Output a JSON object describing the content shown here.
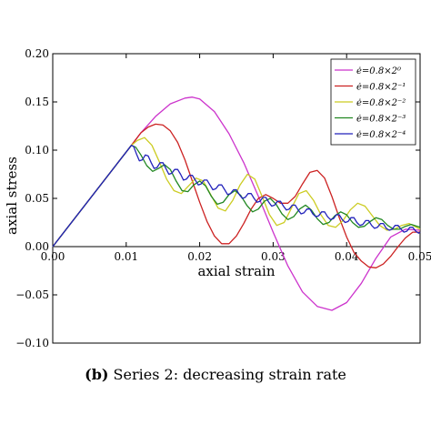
{
  "caption": {
    "label": "(b)",
    "text": "Series 2: decreasing strain rate"
  },
  "chart_data": {
    "type": "line",
    "xlabel": "axial strain",
    "ylabel": "axial stress",
    "xlim": [
      0.0,
      0.05
    ],
    "ylim": [
      -0.1,
      0.2
    ],
    "x_ticks": [
      "0.00",
      "0.01",
      "0.02",
      "0.03",
      "0.04",
      "0.05"
    ],
    "y_ticks": [
      "0.20",
      "0.15",
      "0.10",
      "0.05",
      "0.00",
      "−0.05",
      "−0.10"
    ],
    "x_tick_values": [
      0.0,
      0.01,
      0.02,
      0.03,
      0.04,
      0.05
    ],
    "y_tick_values": [
      0.2,
      0.15,
      0.1,
      0.05,
      0.0,
      -0.05,
      -0.1
    ],
    "grid": false,
    "legend_position": "top-right",
    "series": [
      {
        "name": "ė=0.8×2⁰",
        "color": "#cc33cc",
        "points": [
          [
            0.0,
            0.0
          ],
          [
            0.0107,
            0.105
          ],
          [
            0.012,
            0.118
          ],
          [
            0.014,
            0.135
          ],
          [
            0.016,
            0.148
          ],
          [
            0.018,
            0.154
          ],
          [
            0.019,
            0.155
          ],
          [
            0.02,
            0.153
          ],
          [
            0.022,
            0.14
          ],
          [
            0.024,
            0.117
          ],
          [
            0.026,
            0.087
          ],
          [
            0.028,
            0.052
          ],
          [
            0.03,
            0.015
          ],
          [
            0.032,
            -0.02
          ],
          [
            0.034,
            -0.047
          ],
          [
            0.036,
            -0.062
          ],
          [
            0.038,
            -0.066
          ],
          [
            0.04,
            -0.058
          ],
          [
            0.042,
            -0.038
          ],
          [
            0.044,
            -0.012
          ],
          [
            0.046,
            0.01
          ],
          [
            0.048,
            0.018
          ],
          [
            0.05,
            0.017
          ]
        ]
      },
      {
        "name": "ė=0.8×2⁻¹",
        "color": "#cc2222",
        "points": [
          [
            0.0,
            0.0
          ],
          [
            0.0107,
            0.105
          ],
          [
            0.012,
            0.118
          ],
          [
            0.013,
            0.124
          ],
          [
            0.014,
            0.127
          ],
          [
            0.015,
            0.126
          ],
          [
            0.016,
            0.12
          ],
          [
            0.017,
            0.108
          ],
          [
            0.018,
            0.09
          ],
          [
            0.019,
            0.068
          ],
          [
            0.02,
            0.046
          ],
          [
            0.021,
            0.026
          ],
          [
            0.022,
            0.011
          ],
          [
            0.023,
            0.003
          ],
          [
            0.024,
            0.003
          ],
          [
            0.025,
            0.011
          ],
          [
            0.026,
            0.024
          ],
          [
            0.027,
            0.039
          ],
          [
            0.028,
            0.05
          ],
          [
            0.029,
            0.054
          ],
          [
            0.03,
            0.05
          ],
          [
            0.031,
            0.045
          ],
          [
            0.032,
            0.045
          ],
          [
            0.033,
            0.052
          ],
          [
            0.034,
            0.065
          ],
          [
            0.035,
            0.077
          ],
          [
            0.036,
            0.079
          ],
          [
            0.037,
            0.071
          ],
          [
            0.038,
            0.052
          ],
          [
            0.039,
            0.03
          ],
          [
            0.04,
            0.01
          ],
          [
            0.041,
            -0.006
          ],
          [
            0.042,
            -0.015
          ],
          [
            0.043,
            -0.021
          ],
          [
            0.044,
            -0.022
          ],
          [
            0.045,
            -0.018
          ],
          [
            0.046,
            -0.01
          ],
          [
            0.047,
            0.0
          ],
          [
            0.048,
            0.009
          ],
          [
            0.049,
            0.015
          ],
          [
            0.05,
            0.015
          ]
        ]
      },
      {
        "name": "ė=0.8×2⁻²",
        "color": "#cccc22",
        "points": [
          [
            0.0,
            0.0
          ],
          [
            0.0107,
            0.105
          ],
          [
            0.0115,
            0.11
          ],
          [
            0.0125,
            0.113
          ],
          [
            0.0135,
            0.105
          ],
          [
            0.0145,
            0.088
          ],
          [
            0.0155,
            0.07
          ],
          [
            0.0165,
            0.058
          ],
          [
            0.0175,
            0.055
          ],
          [
            0.0185,
            0.063
          ],
          [
            0.0195,
            0.071
          ],
          [
            0.0205,
            0.068
          ],
          [
            0.0215,
            0.054
          ],
          [
            0.0225,
            0.04
          ],
          [
            0.0235,
            0.037
          ],
          [
            0.0245,
            0.048
          ],
          [
            0.0255,
            0.064
          ],
          [
            0.0265,
            0.075
          ],
          [
            0.0275,
            0.07
          ],
          [
            0.0285,
            0.052
          ],
          [
            0.0295,
            0.033
          ],
          [
            0.0305,
            0.022
          ],
          [
            0.0315,
            0.025
          ],
          [
            0.0325,
            0.04
          ],
          [
            0.0335,
            0.055
          ],
          [
            0.0345,
            0.058
          ],
          [
            0.0355,
            0.048
          ],
          [
            0.0365,
            0.033
          ],
          [
            0.0375,
            0.022
          ],
          [
            0.0385,
            0.02
          ],
          [
            0.0395,
            0.027
          ],
          [
            0.0405,
            0.038
          ],
          [
            0.0415,
            0.045
          ],
          [
            0.0425,
            0.042
          ],
          [
            0.0435,
            0.032
          ],
          [
            0.0445,
            0.022
          ],
          [
            0.0455,
            0.017
          ],
          [
            0.0465,
            0.018
          ],
          [
            0.0475,
            0.022
          ],
          [
            0.0485,
            0.024
          ],
          [
            0.05,
            0.018
          ]
        ]
      },
      {
        "name": "ė=0.8×2⁻³",
        "color": "#228822",
        "points": [
          [
            0.0,
            0.0
          ],
          [
            0.0107,
            0.105
          ],
          [
            0.0113,
            0.103
          ],
          [
            0.012,
            0.095
          ],
          [
            0.0128,
            0.084
          ],
          [
            0.0136,
            0.078
          ],
          [
            0.0144,
            0.081
          ],
          [
            0.0152,
            0.085
          ],
          [
            0.016,
            0.08
          ],
          [
            0.0168,
            0.068
          ],
          [
            0.0176,
            0.058
          ],
          [
            0.0184,
            0.057
          ],
          [
            0.0192,
            0.064
          ],
          [
            0.02,
            0.068
          ],
          [
            0.0208,
            0.063
          ],
          [
            0.0216,
            0.052
          ],
          [
            0.0224,
            0.044
          ],
          [
            0.0232,
            0.046
          ],
          [
            0.024,
            0.054
          ],
          [
            0.0248,
            0.058
          ],
          [
            0.0256,
            0.053
          ],
          [
            0.0264,
            0.043
          ],
          [
            0.0272,
            0.036
          ],
          [
            0.028,
            0.039
          ],
          [
            0.0288,
            0.047
          ],
          [
            0.0296,
            0.05
          ],
          [
            0.0304,
            0.044
          ],
          [
            0.0312,
            0.034
          ],
          [
            0.032,
            0.028
          ],
          [
            0.0328,
            0.031
          ],
          [
            0.0336,
            0.039
          ],
          [
            0.0344,
            0.043
          ],
          [
            0.0352,
            0.038
          ],
          [
            0.036,
            0.029
          ],
          [
            0.0368,
            0.023
          ],
          [
            0.0376,
            0.025
          ],
          [
            0.0384,
            0.032
          ],
          [
            0.0392,
            0.036
          ],
          [
            0.04,
            0.033
          ],
          [
            0.0408,
            0.025
          ],
          [
            0.0416,
            0.02
          ],
          [
            0.0424,
            0.021
          ],
          [
            0.0432,
            0.026
          ],
          [
            0.044,
            0.03
          ],
          [
            0.0448,
            0.028
          ],
          [
            0.0456,
            0.022
          ],
          [
            0.0464,
            0.018
          ],
          [
            0.0472,
            0.018
          ],
          [
            0.048,
            0.021
          ],
          [
            0.0488,
            0.023
          ],
          [
            0.05,
            0.02
          ]
        ]
      },
      {
        "name": "ė=0.8×2⁻⁴",
        "color": "#2222bb",
        "points": [
          [
            0.0,
            0.0
          ],
          [
            0.0107,
            0.105
          ],
          [
            0.011,
            0.104
          ],
          [
            0.0114,
            0.096
          ],
          [
            0.0118,
            0.089
          ],
          [
            0.0122,
            0.09
          ],
          [
            0.0126,
            0.095
          ],
          [
            0.013,
            0.094
          ],
          [
            0.0134,
            0.087
          ],
          [
            0.0138,
            0.081
          ],
          [
            0.0142,
            0.082
          ],
          [
            0.0146,
            0.087
          ],
          [
            0.015,
            0.087
          ],
          [
            0.0154,
            0.081
          ],
          [
            0.0158,
            0.075
          ],
          [
            0.0162,
            0.076
          ],
          [
            0.0166,
            0.08
          ],
          [
            0.017,
            0.08
          ],
          [
            0.0174,
            0.075
          ],
          [
            0.0178,
            0.069
          ],
          [
            0.0182,
            0.07
          ],
          [
            0.0186,
            0.074
          ],
          [
            0.019,
            0.074
          ],
          [
            0.0194,
            0.069
          ],
          [
            0.0198,
            0.064
          ],
          [
            0.0202,
            0.065
          ],
          [
            0.0206,
            0.069
          ],
          [
            0.021,
            0.069
          ],
          [
            0.0214,
            0.064
          ],
          [
            0.0218,
            0.059
          ],
          [
            0.0222,
            0.06
          ],
          [
            0.0226,
            0.064
          ],
          [
            0.023,
            0.064
          ],
          [
            0.0234,
            0.059
          ],
          [
            0.0238,
            0.054
          ],
          [
            0.0242,
            0.055
          ],
          [
            0.0246,
            0.059
          ],
          [
            0.025,
            0.059
          ],
          [
            0.0254,
            0.054
          ],
          [
            0.0258,
            0.05
          ],
          [
            0.0262,
            0.051
          ],
          [
            0.0266,
            0.055
          ],
          [
            0.027,
            0.055
          ],
          [
            0.0274,
            0.05
          ],
          [
            0.0278,
            0.046
          ],
          [
            0.0282,
            0.047
          ],
          [
            0.0286,
            0.051
          ],
          [
            0.029,
            0.051
          ],
          [
            0.0294,
            0.046
          ],
          [
            0.0298,
            0.042
          ],
          [
            0.0302,
            0.043
          ],
          [
            0.0306,
            0.047
          ],
          [
            0.031,
            0.047
          ],
          [
            0.0314,
            0.042
          ],
          [
            0.0318,
            0.038
          ],
          [
            0.0322,
            0.039
          ],
          [
            0.0326,
            0.043
          ],
          [
            0.033,
            0.043
          ],
          [
            0.0334,
            0.038
          ],
          [
            0.0338,
            0.034
          ],
          [
            0.0342,
            0.035
          ],
          [
            0.0346,
            0.039
          ],
          [
            0.035,
            0.039
          ],
          [
            0.0354,
            0.034
          ],
          [
            0.0358,
            0.031
          ],
          [
            0.0362,
            0.032
          ],
          [
            0.0366,
            0.036
          ],
          [
            0.037,
            0.036
          ],
          [
            0.0374,
            0.031
          ],
          [
            0.0378,
            0.028
          ],
          [
            0.0382,
            0.029
          ],
          [
            0.0386,
            0.033
          ],
          [
            0.039,
            0.033
          ],
          [
            0.0394,
            0.028
          ],
          [
            0.0398,
            0.025
          ],
          [
            0.0402,
            0.026
          ],
          [
            0.0406,
            0.03
          ],
          [
            0.041,
            0.03
          ],
          [
            0.0414,
            0.025
          ],
          [
            0.0418,
            0.022
          ],
          [
            0.0422,
            0.023
          ],
          [
            0.0426,
            0.027
          ],
          [
            0.043,
            0.027
          ],
          [
            0.0434,
            0.022
          ],
          [
            0.0438,
            0.019
          ],
          [
            0.0442,
            0.02
          ],
          [
            0.0446,
            0.024
          ],
          [
            0.045,
            0.024
          ],
          [
            0.0454,
            0.019
          ],
          [
            0.0458,
            0.017
          ],
          [
            0.0462,
            0.018
          ],
          [
            0.0466,
            0.022
          ],
          [
            0.047,
            0.022
          ],
          [
            0.0474,
            0.018
          ],
          [
            0.0478,
            0.015
          ],
          [
            0.0482,
            0.016
          ],
          [
            0.0486,
            0.02
          ],
          [
            0.049,
            0.02
          ],
          [
            0.0494,
            0.016
          ],
          [
            0.0498,
            0.014
          ],
          [
            0.05,
            0.015
          ]
        ]
      }
    ]
  }
}
